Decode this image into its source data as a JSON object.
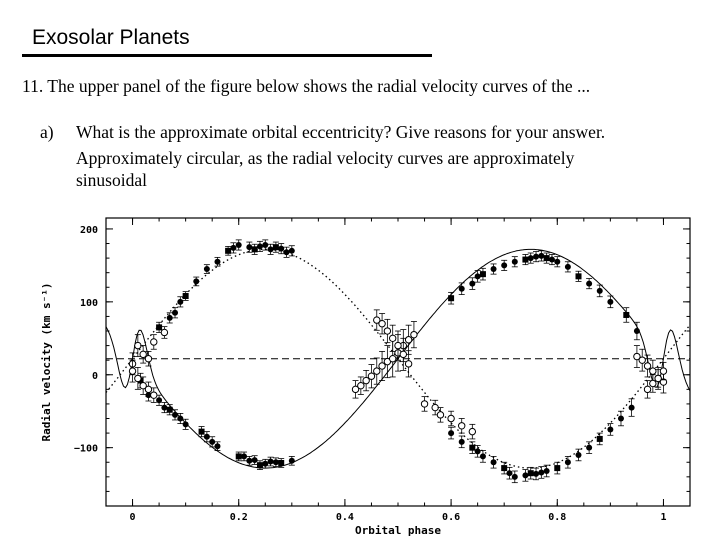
{
  "slide": {
    "title": "Exosolar Planets",
    "question": "11. The upper panel of the figure below shows the radial velocity curves of the ...",
    "part_marker": "a)",
    "part_question": "What is the approximate orbital eccentricity?  Give reasons for your answer.",
    "answer_lines": [
      "Approximately circular, as the radial velocity curves are approximately",
      "sinusoidal"
    ]
  },
  "chart_data": {
    "type": "scatter",
    "xlabel": "Orbital phase",
    "ylabel": "Radial velocity (km s⁻¹)",
    "xlim": [
      -0.05,
      1.05
    ],
    "ylim": [
      -180,
      215
    ],
    "x_ticks": [
      0,
      0.2,
      0.4,
      0.6,
      0.8,
      1
    ],
    "x_tick_labels": [
      "0",
      "0.2",
      "0.4",
      "0.6",
      "0.8",
      "1"
    ],
    "y_ticks": [
      -100,
      0,
      100,
      200
    ],
    "y_tick_labels": [
      "−100",
      "0",
      "100",
      "200"
    ],
    "systemic_velocity": 22,
    "grid": false,
    "series": [
      {
        "marker": "filled",
        "x": [
          0.05,
          0.07,
          0.08,
          0.09,
          0.1,
          0.12,
          0.14,
          0.16,
          0.18,
          0.19,
          0.2,
          0.22,
          0.23,
          0.24,
          0.25,
          0.26,
          0.27,
          0.28,
          0.29,
          0.3,
          0.015,
          0.03,
          0.05,
          0.06,
          0.07,
          0.08,
          0.09,
          0.1,
          0.13,
          0.14,
          0.15,
          0.16,
          0.2,
          0.21,
          0.22,
          0.23,
          0.24,
          0.25,
          0.26,
          0.27,
          0.28,
          0.3
        ],
        "y": [
          65,
          78,
          85,
          100,
          108,
          128,
          145,
          155,
          170,
          174,
          178,
          175,
          172,
          176,
          178,
          172,
          175,
          173,
          168,
          170,
          -8,
          -28,
          -35,
          -45,
          -48,
          -55,
          -60,
          -68,
          -78,
          -85,
          -92,
          -98,
          -112,
          -112,
          -118,
          -117,
          -124,
          -122,
          -119,
          -120,
          -121,
          -118
        ],
        "yerr": [
          7,
          7,
          7,
          7,
          6,
          6,
          6,
          6,
          6,
          7,
          7,
          7,
          7,
          7,
          7,
          7,
          7,
          7,
          7,
          7,
          10,
          8,
          7,
          7,
          7,
          7,
          7,
          7,
          7,
          7,
          7,
          6,
          6,
          6,
          6,
          6,
          6,
          6,
          6,
          6,
          6,
          6
        ]
      },
      {
        "marker": "open",
        "x": [
          0.0,
          0.01,
          0.02,
          0.03,
          0.04,
          0.06,
          0.0,
          0.01,
          0.02,
          0.03,
          0.04,
          0.42,
          0.43,
          0.44,
          0.45,
          0.46,
          0.47,
          0.48,
          0.49,
          0.5,
          0.51,
          0.52,
          0.53,
          0.46,
          0.47,
          0.48,
          0.49,
          0.5,
          0.51,
          0.52,
          0.55,
          0.57,
          0.58,
          0.6,
          0.62,
          0.64,
          0.95,
          0.96,
          0.97,
          0.98,
          0.99,
          1.0,
          0.97,
          0.98,
          0.99,
          1.0
        ],
        "y": [
          15,
          40,
          28,
          22,
          45,
          58,
          5,
          -5,
          -15,
          -20,
          -28,
          -20,
          -15,
          -8,
          -2,
          5,
          12,
          18,
          22,
          30,
          40,
          48,
          55,
          75,
          70,
          60,
          50,
          40,
          28,
          15,
          -40,
          -45,
          -55,
          -60,
          -70,
          -78,
          25,
          20,
          12,
          5,
          -5,
          -10,
          -20,
          -12,
          -5,
          5
        ],
        "yerr": [
          15,
          15,
          12,
          10,
          10,
          8,
          15,
          15,
          12,
          10,
          10,
          12,
          12,
          14,
          16,
          18,
          20,
          22,
          25,
          25,
          22,
          20,
          18,
          14,
          14,
          16,
          18,
          20,
          22,
          18,
          10,
          10,
          10,
          10,
          10,
          10,
          15,
          15,
          15,
          15,
          15,
          15,
          12,
          12,
          12,
          12
        ]
      },
      {
        "marker": "filled",
        "x": [
          0.6,
          0.62,
          0.64,
          0.65,
          0.66,
          0.68,
          0.7,
          0.72,
          0.74,
          0.75,
          0.76,
          0.77,
          0.78,
          0.79,
          0.8,
          0.82,
          0.84,
          0.86,
          0.88,
          0.9,
          0.93,
          0.95,
          0.6,
          0.62,
          0.64,
          0.65,
          0.66,
          0.68,
          0.7,
          0.71,
          0.72,
          0.74,
          0.75,
          0.76,
          0.77,
          0.78,
          0.8,
          0.82,
          0.84,
          0.86,
          0.88,
          0.9,
          0.92,
          0.94
        ],
        "y": [
          105,
          118,
          125,
          135,
          138,
          145,
          150,
          155,
          158,
          160,
          162,
          163,
          160,
          158,
          155,
          148,
          135,
          125,
          115,
          100,
          82,
          60,
          -80,
          -92,
          -100,
          -105,
          -112,
          -120,
          -128,
          -135,
          -140,
          -138,
          -135,
          -136,
          -134,
          -132,
          -128,
          -120,
          -110,
          -100,
          -88,
          -75,
          -60,
          -45
        ],
        "yerr": [
          8,
          8,
          8,
          8,
          8,
          7,
          7,
          7,
          7,
          7,
          7,
          7,
          7,
          7,
          7,
          7,
          7,
          7,
          8,
          8,
          10,
          12,
          8,
          8,
          8,
          8,
          8,
          8,
          8,
          8,
          8,
          8,
          8,
          8,
          8,
          8,
          8,
          8,
          8,
          8,
          8,
          8,
          10,
          12
        ]
      }
    ]
  }
}
